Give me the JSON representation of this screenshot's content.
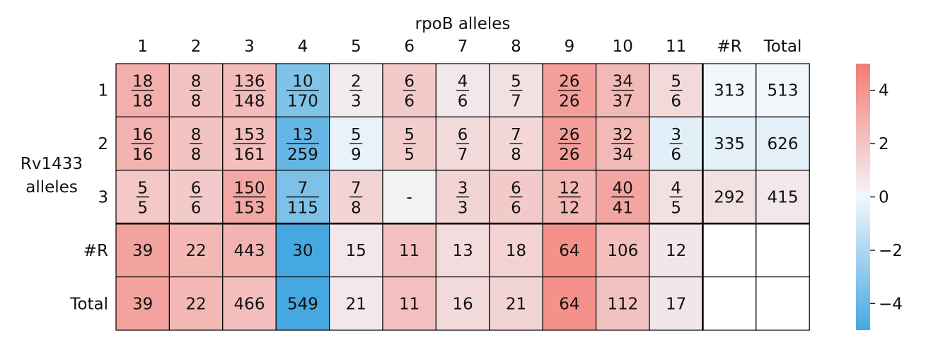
{
  "chart_data": {
    "type": "heatmap",
    "x_axis_title": "rpoB alleles",
    "y_axis_title": [
      "Rv1433",
      "alleles"
    ],
    "column_labels": [
      "1",
      "2",
      "3",
      "4",
      "5",
      "6",
      "7",
      "8",
      "9",
      "10",
      "11",
      "#R",
      "Total"
    ],
    "row_labels": [
      "1",
      "2",
      "3",
      "#R",
      "Total"
    ],
    "rows": [
      {
        "label": "1",
        "cells": [
          {
            "num": "18",
            "den": "18",
            "score": 2.9
          },
          {
            "num": "8",
            "den": "8",
            "score": 2.1
          },
          {
            "num": "136",
            "den": "148",
            "score": 2.4
          },
          {
            "num": "10",
            "den": "170",
            "score": -3.3
          },
          {
            "num": "2",
            "den": "3",
            "score": 0.5
          },
          {
            "num": "6",
            "den": "6",
            "score": 1.8
          },
          {
            "num": "4",
            "den": "6",
            "score": 0.6
          },
          {
            "num": "5",
            "den": "7",
            "score": 0.9
          },
          {
            "num": "26",
            "den": "26",
            "score": 3.6
          },
          {
            "num": "34",
            "den": "37",
            "score": 2.5
          },
          {
            "num": "5",
            "den": "6",
            "score": 1.2
          },
          {
            "text": "313",
            "score": 0.0
          },
          {
            "text": "513",
            "score": 0.0
          }
        ]
      },
      {
        "label": "2",
        "cells": [
          {
            "num": "16",
            "den": "16",
            "score": 2.7
          },
          {
            "num": "8",
            "den": "8",
            "score": 2.1
          },
          {
            "num": "153",
            "den": "161",
            "score": 2.3
          },
          {
            "num": "13",
            "den": "259",
            "score": -4.1
          },
          {
            "num": "5",
            "den": "9",
            "score": -0.3
          },
          {
            "num": "5",
            "den": "5",
            "score": 1.7
          },
          {
            "num": "6",
            "den": "7",
            "score": 1.2
          },
          {
            "num": "7",
            "den": "8",
            "score": 1.3
          },
          {
            "num": "26",
            "den": "26",
            "score": 3.6
          },
          {
            "num": "32",
            "den": "34",
            "score": 2.5
          },
          {
            "num": "3",
            "den": "6",
            "score": -0.5
          },
          {
            "text": "335",
            "score": -0.4
          },
          {
            "text": "626",
            "score": -0.4
          }
        ]
      },
      {
        "label": "3",
        "cells": [
          {
            "num": "5",
            "den": "5",
            "score": 1.9
          },
          {
            "num": "6",
            "den": "6",
            "score": 1.8
          },
          {
            "num": "150",
            "den": "153",
            "score": 3.2
          },
          {
            "num": "7",
            "den": "115",
            "score": -3.4
          },
          {
            "num": "7",
            "den": "8",
            "score": 1.4
          },
          {
            "text": "-",
            "score": null
          },
          {
            "num": "3",
            "den": "3",
            "score": 1.4
          },
          {
            "num": "6",
            "den": "6",
            "score": 1.8
          },
          {
            "num": "12",
            "den": "12",
            "score": 2.6
          },
          {
            "num": "40",
            "den": "41",
            "score": 3.3
          },
          {
            "num": "4",
            "den": "5",
            "score": 0.9
          },
          {
            "text": "292",
            "score": 0.9
          },
          {
            "text": "415",
            "score": 0.6
          }
        ]
      },
      {
        "label": "#R",
        "cells": [
          {
            "text": "39",
            "score": 3.4
          },
          {
            "text": "22",
            "score": 2.6
          },
          {
            "text": "443",
            "score": 2.7
          },
          {
            "text": "30",
            "score": -5.0
          },
          {
            "text": "15",
            "score": 0.6
          },
          {
            "text": "11",
            "score": 2.2
          },
          {
            "text": "13",
            "score": 1.1
          },
          {
            "text": "18",
            "score": 1.5
          },
          {
            "text": "64",
            "score": 4.1
          },
          {
            "text": "106",
            "score": 2.3
          },
          {
            "text": "12",
            "score": 0.7
          },
          {
            "text": "",
            "score": null,
            "blank": true
          },
          {
            "text": "",
            "score": null,
            "blank": true
          }
        ]
      },
      {
        "label": "Total",
        "cells": [
          {
            "text": "39",
            "score": 3.4
          },
          {
            "text": "22",
            "score": 2.6
          },
          {
            "text": "466",
            "score": 2.3
          },
          {
            "text": "549",
            "score": -5.0
          },
          {
            "text": "21",
            "score": 0.6
          },
          {
            "text": "11",
            "score": 2.2
          },
          {
            "text": "16",
            "score": 1.2
          },
          {
            "text": "21",
            "score": 1.4
          },
          {
            "text": "64",
            "score": 4.1
          },
          {
            "text": "112",
            "score": 2.1
          },
          {
            "text": "17",
            "score": 0.7
          },
          {
            "text": "",
            "score": null,
            "blank": true
          },
          {
            "text": "",
            "score": null,
            "blank": true
          }
        ]
      }
    ],
    "colorbar": {
      "vmin": -5,
      "vmax": 5,
      "ticks": [
        4,
        2,
        0,
        -2,
        -4
      ],
      "tick_labels": [
        "4",
        "2",
        "0",
        "−2",
        "−4"
      ],
      "colors": {
        "low": "#46a8e0",
        "mid": "#f2f7fb",
        "high": "#f47b72"
      }
    },
    "missing_color": "#f2f2f2",
    "blank_color": "#ffffff"
  }
}
